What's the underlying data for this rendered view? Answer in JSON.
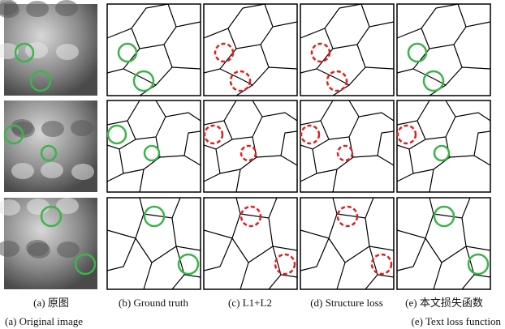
{
  "columns": [
    {
      "caption": "(a) 原图"
    },
    {
      "caption": "(b) Ground truth"
    },
    {
      "caption": "(c) L1+L2"
    },
    {
      "caption": "(d) Structure loss"
    },
    {
      "caption": "(e) 本文损失函数"
    }
  ],
  "subcaptions": {
    "left": "(a) Original image",
    "right": "(e) Text loss function"
  }
}
